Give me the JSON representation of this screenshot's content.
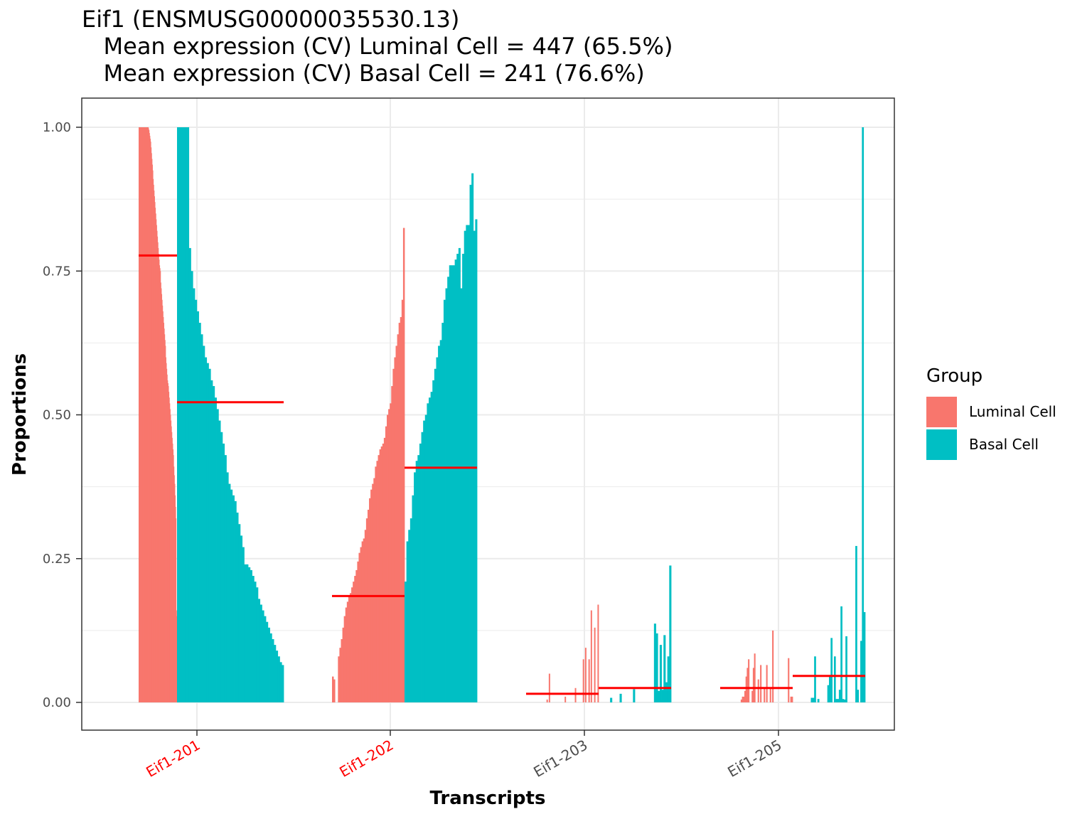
{
  "title": {
    "line1": "Eif1 (ENSMUSG00000035530.13)",
    "line2": "   Mean expression (CV) Luminal Cell = 447 (65.5%)",
    "line3": "   Mean expression (CV) Basal Cell = 241 (76.6%)"
  },
  "legend": {
    "title": "Group",
    "items": [
      {
        "label": "Luminal Cell",
        "color": "#F8766D"
      },
      {
        "label": "Basal Cell",
        "color": "#00BFC4"
      }
    ]
  },
  "chart_data": {
    "type": "bar",
    "subtype": "per-cell proportion bars grouped by transcript, with red mean lines",
    "xlabel": "Transcripts",
    "ylabel": "Proportions",
    "ylim": [
      0,
      1
    ],
    "yticks": [
      "0.00",
      "0.25",
      "0.50",
      "0.75",
      "1.00"
    ],
    "grid": true,
    "legend_position": "right",
    "mean_line_color": "#FF0000",
    "categories": [
      {
        "label": "Eif1-201",
        "label_color": "#FF0000"
      },
      {
        "label": "Eif1-202",
        "label_color": "#FF0000"
      },
      {
        "label": "Eif1-203",
        "label_color": "#4D4D4D"
      },
      {
        "label": "Eif1-205",
        "label_color": "#4D4D4D"
      }
    ],
    "series": [
      {
        "name": "Luminal Cell",
        "color": "#F8766D",
        "transcripts": [
          {
            "transcript": "Eif1-201",
            "mean": 0.777,
            "values": [
              1,
              1,
              1,
              1,
              1,
              1,
              1,
              1,
              1,
              1,
              1,
              1,
              1,
              1,
              1,
              1,
              1,
              1,
              1,
              1,
              1,
              1,
              1,
              0.998,
              0.995,
              0.99,
              0.985,
              0.98,
              0.975,
              0.965,
              0.955,
              0.945,
              0.935,
              0.925,
              0.91,
              0.9,
              0.89,
              0.88,
              0.87,
              0.86,
              0.85,
              0.84,
              0.83,
              0.82,
              0.81,
              0.8,
              0.79,
              0.78,
              0.77,
              0.76,
              0.755,
              0.75,
              0.73,
              0.72,
              0.71,
              0.7,
              0.69,
              0.68,
              0.67,
              0.66,
              0.65,
              0.64,
              0.63,
              0.62,
              0.6,
              0.59,
              0.58,
              0.57,
              0.56,
              0.555,
              0.55,
              0.54,
              0.53,
              0.52,
              0.51,
              0.5,
              0.49,
              0.48,
              0.47,
              0.46,
              0.45,
              0.44,
              0.43,
              0.41,
              0.395,
              0.38,
              0.36,
              0.34,
              0.32,
              0.16,
              0.15
            ]
          },
          {
            "transcript": "Eif1-202",
            "mean": 0.185,
            "values": [
              0.045,
              0.04,
              0,
              0,
              0.08,
              0.095,
              0.11,
              0.13,
              0.15,
              0.165,
              0.175,
              0.185,
              0.19,
              0.2,
              0.21,
              0.22,
              0.23,
              0.245,
              0.26,
              0.27,
              0.28,
              0.285,
              0.3,
              0.32,
              0.335,
              0.355,
              0.37,
              0.38,
              0.39,
              0.41,
              0.42,
              0.43,
              0.44,
              0.445,
              0.45,
              0.46,
              0.48,
              0.5,
              0.51,
              0.52,
              0.55,
              0.58,
              0.6,
              0.62,
              0.64,
              0.66,
              0.67,
              0.7,
              0.825
            ]
          },
          {
            "transcript": "Eif1-203",
            "mean": 0.015,
            "values": [
              0,
              0,
              0,
              0,
              0,
              0,
              0,
              0,
              0,
              0,
              0,
              0,
              0,
              0,
              0,
              0,
              0,
              0,
              0.005,
              0,
              0.05,
              0,
              0,
              0,
              0,
              0,
              0,
              0,
              0,
              0,
              0,
              0,
              0,
              0,
              0.01,
              0,
              0,
              0,
              0,
              0,
              0,
              0,
              0,
              0.025,
              0,
              0,
              0,
              0,
              0,
              0,
              0.075,
              0,
              0.095,
              0,
              0,
              0.075,
              0,
              0.16,
              0,
              0,
              0.13,
              0,
              0,
              0.17
            ]
          },
          {
            "transcript": "Eif1-205",
            "mean": 0.025,
            "values": [
              0,
              0,
              0,
              0,
              0,
              0,
              0,
              0,
              0,
              0,
              0,
              0,
              0,
              0,
              0,
              0,
              0,
              0.005,
              0.01,
              0.01,
              0.02,
              0.045,
              0.06,
              0.075,
              0,
              0,
              0.02,
              0.06,
              0.085,
              0,
              0,
              0.04,
              0,
              0.065,
              0,
              0,
              0.025,
              0,
              0.065,
              0,
              0,
              0.025,
              0,
              0.125,
              0,
              0,
              0,
              0,
              0,
              0,
              0,
              0,
              0,
              0,
              0,
              0,
              0.077,
              0,
              0.01,
              0.01
            ]
          }
        ]
      },
      {
        "name": "Basal Cell",
        "color": "#00BFC4",
        "transcripts": [
          {
            "transcript": "Eif1-201",
            "mean": 0.522,
            "values": [
              1,
              1,
              1,
              1,
              1,
              1,
              0.79,
              0.75,
              0.72,
              0.7,
              0.68,
              0.66,
              0.64,
              0.62,
              0.6,
              0.59,
              0.58,
              0.56,
              0.55,
              0.53,
              0.51,
              0.49,
              0.47,
              0.45,
              0.43,
              0.4,
              0.38,
              0.37,
              0.36,
              0.35,
              0.33,
              0.31,
              0.29,
              0.27,
              0.24,
              0.24,
              0.235,
              0.23,
              0.22,
              0.21,
              0.2,
              0.18,
              0.17,
              0.16,
              0.15,
              0.14,
              0.13,
              0.12,
              0.11,
              0.1,
              0.09,
              0.08,
              0.07,
              0.065
            ]
          },
          {
            "transcript": "Eif1-202",
            "mean": 0.408,
            "values": [
              0.21,
              0.28,
              0.3,
              0.32,
              0.36,
              0.4,
              0.42,
              0.43,
              0.45,
              0.47,
              0.49,
              0.5,
              0.52,
              0.53,
              0.54,
              0.56,
              0.58,
              0.6,
              0.62,
              0.63,
              0.66,
              0.7,
              0.72,
              0.74,
              0.76,
              0.76,
              0.76,
              0.77,
              0.78,
              0.79,
              0.72,
              0.78,
              0.82,
              0.83,
              0.83,
              0.9,
              0.92,
              0.82,
              0.84
            ]
          },
          {
            "transcript": "Eif1-203",
            "mean": 0.025,
            "values": [
              0,
              0,
              0,
              0,
              0,
              0,
              0.008,
              0,
              0,
              0,
              0,
              0.015,
              0,
              0,
              0,
              0,
              0,
              0,
              0.023,
              0,
              0,
              0,
              0,
              0,
              0,
              0,
              0,
              0,
              0,
              0.137,
              0.12,
              0.02,
              0.1,
              0.022,
              0.117,
              0.035,
              0.08,
              0.238
            ]
          },
          {
            "transcript": "Eif1-205",
            "mean": 0.046,
            "values": [
              0,
              0,
              0,
              0,
              0,
              0,
              0,
              0,
              0,
              0,
              0,
              0.008,
              0.008,
              0.08,
              0,
              0.006,
              0,
              0,
              0,
              0,
              0,
              0.03,
              0.045,
              0.112,
              0,
              0.08,
              0.006,
              0.006,
              0.022,
              0.167,
              0.006,
              0.005,
              0.115,
              0,
              0,
              0,
              0,
              0,
              0.272,
              0.022,
              0,
              0.107,
              1,
              0.157
            ]
          }
        ]
      }
    ]
  }
}
